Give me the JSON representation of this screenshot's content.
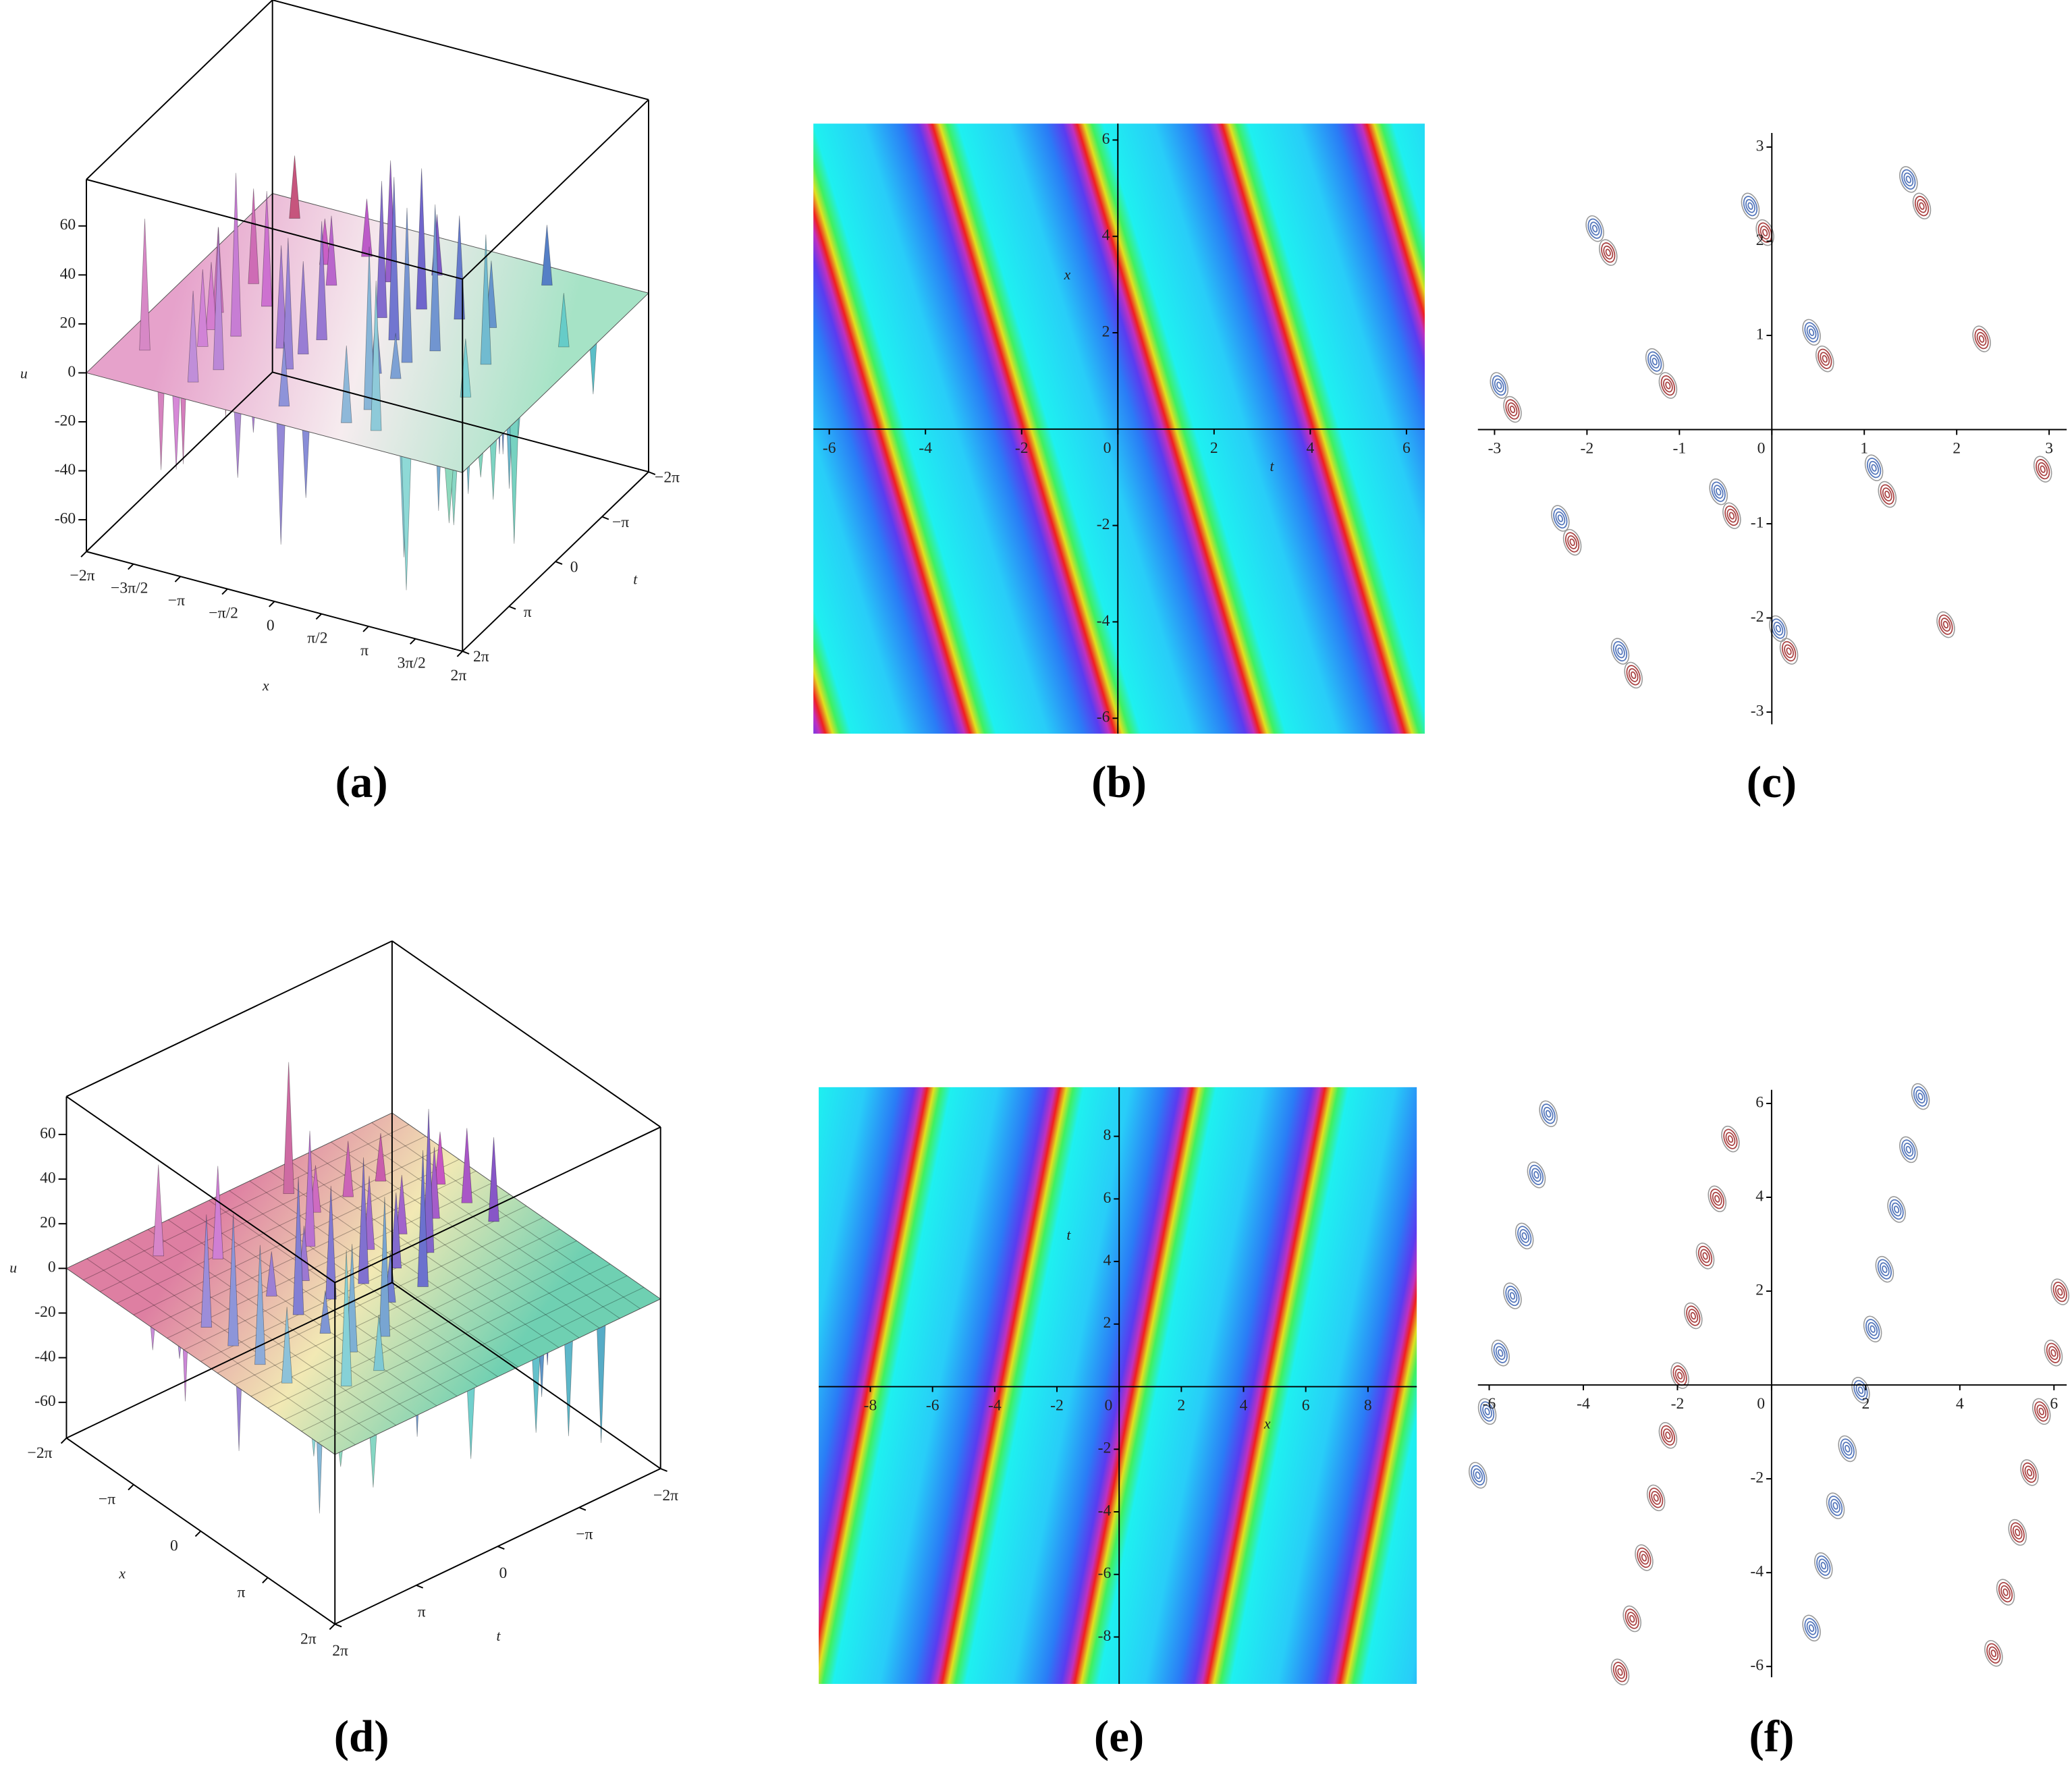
{
  "chart_data": [
    {
      "type": "surface3d",
      "label": "(a)",
      "xlabel": "x",
      "ylabel": "t",
      "zlabel": "u",
      "xlim": [
        -6.2832,
        6.2832
      ],
      "ylim": [
        -6.2832,
        6.2832
      ],
      "zlim": [
        -73,
        79
      ],
      "xticks": [
        {
          "value": -6.2832,
          "label": "−2π"
        },
        {
          "value": -4.7124,
          "label": "−3π/2"
        },
        {
          "value": -3.1416,
          "label": "−π"
        },
        {
          "value": -1.5708,
          "label": "−π/2"
        },
        0,
        {
          "value": 1.5708,
          "label": "π/2"
        },
        {
          "value": 3.1416,
          "label": "π"
        },
        {
          "value": 4.7124,
          "label": "3π/2"
        },
        {
          "value": 6.2832,
          "label": "2π"
        }
      ],
      "yticks": [
        {
          "value": -6.2832,
          "label": "−2π"
        },
        {
          "value": -3.1416,
          "label": "−π"
        },
        0,
        {
          "value": 3.1416,
          "label": "π"
        },
        {
          "value": 6.2832,
          "label": "2π"
        }
      ],
      "zticks": [
        60,
        40,
        20,
        0,
        -20,
        -40,
        -60
      ]
    },
    {
      "type": "density",
      "label": "(b)",
      "xlabel": "t",
      "ylabel": "x",
      "xlim": [
        -6.33,
        6.38
      ],
      "ylim": [
        -6.32,
        6.34
      ],
      "xticks": [
        -6,
        -4,
        -2,
        0,
        2,
        4,
        6
      ],
      "yticks": [
        -6,
        -4,
        -2,
        2,
        4,
        6
      ]
    },
    {
      "type": "contour",
      "label": "(c)",
      "xlim": [
        -3.18,
        3.19
      ],
      "ylim": [
        -3.13,
        3.15
      ],
      "xticks": [
        -3,
        -2,
        -1,
        0,
        1,
        2,
        3
      ],
      "yticks": [
        -3,
        -2,
        -1,
        1,
        2,
        3
      ]
    },
    {
      "type": "surface3d",
      "label": "(d)",
      "xlabel": "x",
      "ylabel": "t",
      "zlabel": "u",
      "xlim": [
        -6.2832,
        6.2832
      ],
      "ylim": [
        -6.2832,
        6.2832
      ],
      "zlim": [
        -76,
        77
      ],
      "xticks": [
        {
          "value": -6.2832,
          "label": "−2π"
        },
        {
          "value": -3.1416,
          "label": "−π"
        },
        0,
        {
          "value": 3.1416,
          "label": "π"
        },
        {
          "value": 6.2832,
          "label": "2π"
        }
      ],
      "yticks": [
        {
          "value": -6.2832,
          "label": "−2π"
        },
        {
          "value": -3.1416,
          "label": "−π"
        },
        0,
        {
          "value": 3.1416,
          "label": "π"
        },
        {
          "value": 6.2832,
          "label": "2π"
        }
      ],
      "zticks": [
        60,
        40,
        20,
        0,
        -20,
        -40,
        -60
      ]
    },
    {
      "type": "density",
      "label": "(e)",
      "xlabel": "x",
      "ylabel": "t",
      "xlim": [
        -9.66,
        9.57
      ],
      "ylim": [
        -9.5,
        9.57
      ],
      "xticks": [
        -8,
        -6,
        -4,
        -2,
        0,
        2,
        4,
        6,
        8
      ],
      "yticks": [
        -8,
        -6,
        -4,
        -2,
        2,
        4,
        6,
        8
      ]
    },
    {
      "type": "contour",
      "label": "(f)",
      "xlim": [
        -6.24,
        6.27
      ],
      "ylim": [
        -6.23,
        6.29
      ],
      "xticks": [
        -6,
        -4,
        -2,
        0,
        2,
        4,
        6
      ],
      "yticks": [
        -6,
        -4,
        -2,
        2,
        4,
        6
      ]
    }
  ]
}
